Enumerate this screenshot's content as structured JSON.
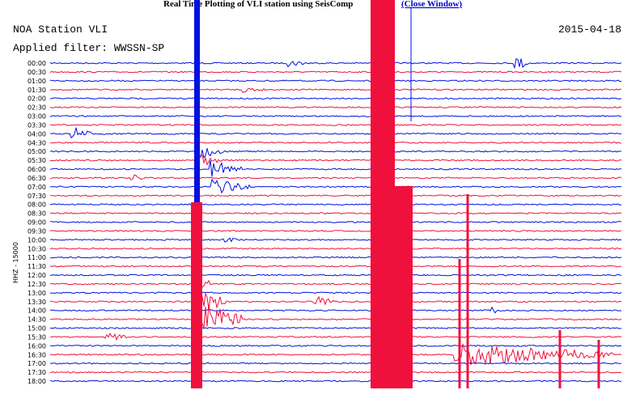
{
  "header": {
    "title": "Real Time Plotting of VLI station using SeisComp",
    "link": "(Close Window)"
  },
  "station": "NOA Station VLI",
  "date": "2015-04-18",
  "filter": "Applied filter: WWSSN-SP",
  "channel": "HHZ - 15000",
  "rows": [
    "00:00",
    "00:30",
    "01:00",
    "01:30",
    "02:00",
    "02:30",
    "03:00",
    "03:30",
    "04:00",
    "04:30",
    "05:00",
    "05:30",
    "06:00",
    "06:30",
    "07:00",
    "07:30",
    "08:00",
    "08:30",
    "09:00",
    "09:30",
    "10:00",
    "10:30",
    "11:00",
    "11:30",
    "12:00",
    "12:30",
    "13:00",
    "13:30",
    "14:00",
    "14:30",
    "15:00",
    "15:30",
    "16:00",
    "16:30",
    "17:00",
    "17:30",
    "18:00"
  ]
}
